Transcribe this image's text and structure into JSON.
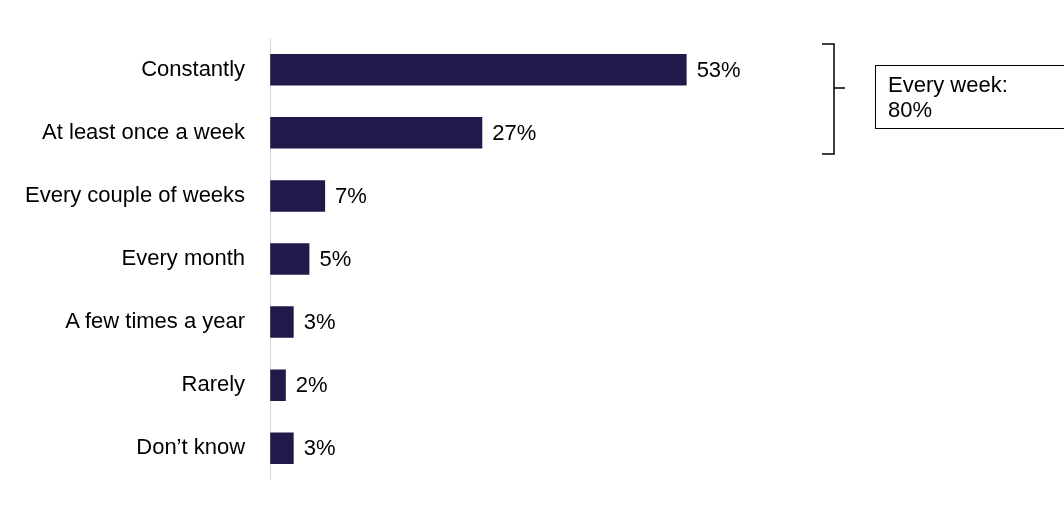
{
  "chart_data": {
    "type": "bar",
    "orientation": "horizontal",
    "categories": [
      "Constantly",
      "At least once a week",
      "Every couple of weeks",
      "Every month",
      "A few times a year",
      "Rarely",
      "Don’t know"
    ],
    "values": [
      53,
      27,
      7,
      5,
      3,
      2,
      3
    ],
    "value_labels": [
      "53%",
      "27%",
      "7%",
      "5%",
      "3%",
      "2%",
      "3%"
    ],
    "color": "#1f1a4a",
    "tick_labels": "y",
    "grid": false,
    "legend": false,
    "annotations": [
      "Every week: 80%"
    ]
  }
}
